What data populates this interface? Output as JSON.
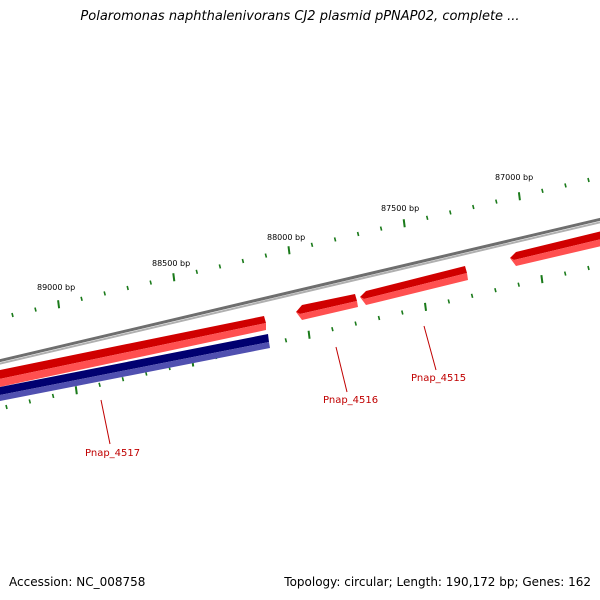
{
  "title": "Polaromonas naphthalenivorans CJ2 plasmid pPNAP02, complete ...",
  "footer": {
    "accession": "Accession: NC_008758",
    "summary": "Topology: circular; Length: 190,172 bp; Genes: 162"
  },
  "ruler": {
    "labels": [
      "89000 bp",
      "88500 bp",
      "88000 bp",
      "87500 bp",
      "87000 bp"
    ]
  },
  "genes": [
    {
      "label": "Pnap_4517",
      "strand": "forward",
      "track": "outer",
      "color": "#e00000"
    },
    {
      "label": "Pnap_4517",
      "strand": "reverse",
      "track": "inner",
      "color": "#000080"
    },
    {
      "label": "Pnap_4516",
      "strand": "forward",
      "track": "outer",
      "color": "#e00000"
    },
    {
      "label": "Pnap_4515",
      "strand": "forward",
      "track": "outer",
      "color": "#e00000"
    },
    {
      "label": "",
      "strand": "forward",
      "track": "outer",
      "color": "#e00000"
    }
  ],
  "gene_labels": [
    "Pnap_4517",
    "Pnap_4516",
    "Pnap_4515"
  ],
  "colors": {
    "backbone": "#808080",
    "forward_gene": "#e00000",
    "reverse_gene": "#000080",
    "ticks": "#1a7a1a",
    "gene_label": "#c00000"
  }
}
